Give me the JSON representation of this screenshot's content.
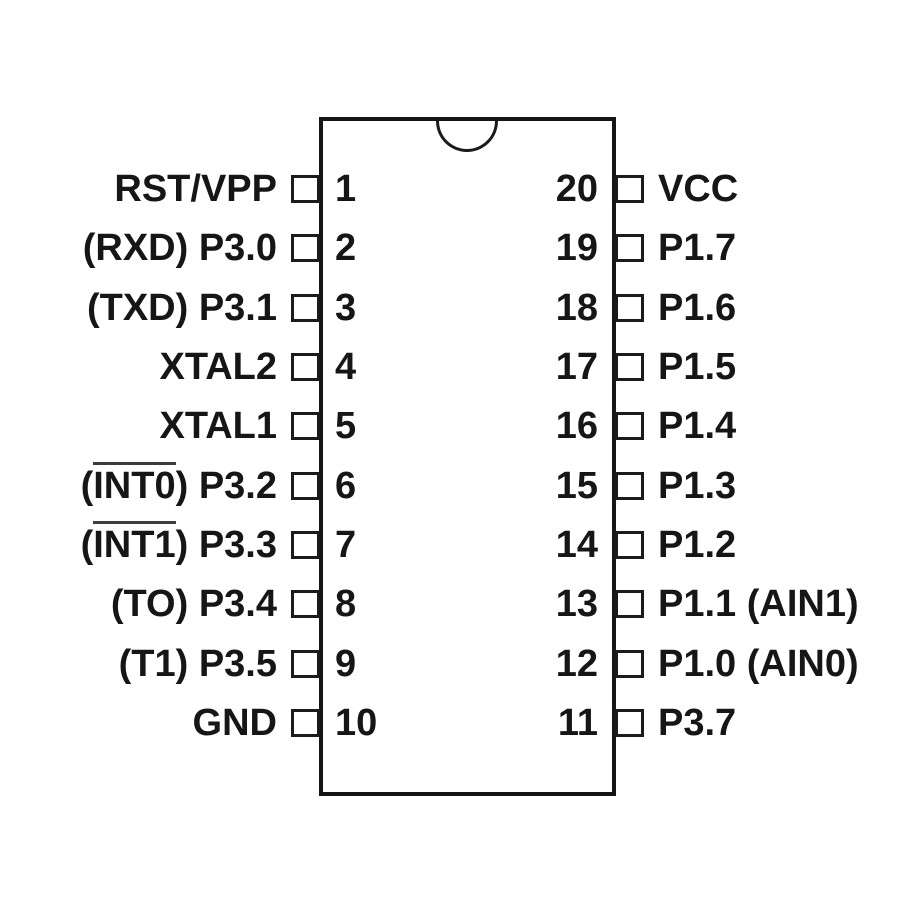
{
  "colors": {
    "ink": "#161616",
    "background": "#ffffff"
  },
  "chip": {
    "package": "20-pin DIP",
    "left_pins": [
      {
        "number": "1",
        "label_pre": "RST/VPP",
        "label_over": "",
        "label_post": ""
      },
      {
        "number": "2",
        "label_pre": "(RXD) P3.0",
        "label_over": "",
        "label_post": ""
      },
      {
        "number": "3",
        "label_pre": "(TXD) P3.1",
        "label_over": "",
        "label_post": ""
      },
      {
        "number": "4",
        "label_pre": "XTAL2",
        "label_over": "",
        "label_post": ""
      },
      {
        "number": "5",
        "label_pre": "XTAL1",
        "label_over": "",
        "label_post": ""
      },
      {
        "number": "6",
        "label_pre": "(",
        "label_over": "INT0",
        "label_post": ") P3.2"
      },
      {
        "number": "7",
        "label_pre": "(",
        "label_over": "INT1",
        "label_post": ") P3.3"
      },
      {
        "number": "8",
        "label_pre": "(TO) P3.4",
        "label_over": "",
        "label_post": ""
      },
      {
        "number": "9",
        "label_pre": "(T1) P3.5",
        "label_over": "",
        "label_post": ""
      },
      {
        "number": "10",
        "label_pre": "GND",
        "label_over": "",
        "label_post": ""
      }
    ],
    "right_pins": [
      {
        "number": "20",
        "label_pre": "VCC",
        "label_over": "",
        "label_post": ""
      },
      {
        "number": "19",
        "label_pre": "P1.7",
        "label_over": "",
        "label_post": ""
      },
      {
        "number": "18",
        "label_pre": "P1.6",
        "label_over": "",
        "label_post": ""
      },
      {
        "number": "17",
        "label_pre": "P1.5",
        "label_over": "",
        "label_post": ""
      },
      {
        "number": "16",
        "label_pre": "P1.4",
        "label_over": "",
        "label_post": ""
      },
      {
        "number": "15",
        "label_pre": "P1.3",
        "label_over": "",
        "label_post": ""
      },
      {
        "number": "14",
        "label_pre": "P1.2",
        "label_over": "",
        "label_post": ""
      },
      {
        "number": "13",
        "label_pre": "P1.1 (AIN1)",
        "label_over": "",
        "label_post": ""
      },
      {
        "number": "12",
        "label_pre": "P1.0 (AIN0)",
        "label_over": "",
        "label_post": ""
      },
      {
        "number": "11",
        "label_pre": "P3.7",
        "label_over": "",
        "label_post": ""
      }
    ]
  }
}
